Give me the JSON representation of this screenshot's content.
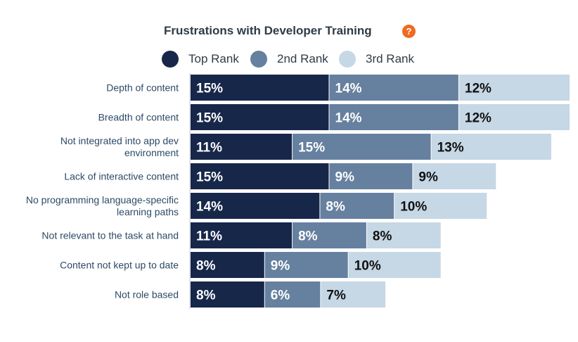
{
  "header": {
    "title": "Frustrations with Developer Training",
    "help_icon": "?"
  },
  "legend": {
    "items": [
      {
        "label": "Top Rank",
        "color": "#17274a"
      },
      {
        "label": "2nd Rank",
        "color": "#66809f"
      },
      {
        "label": "3rd Rank",
        "color": "#c6d7e5"
      }
    ]
  },
  "chart_data": {
    "type": "bar",
    "orientation": "horizontal",
    "stacked": true,
    "title": "Frustrations with Developer Training",
    "categories": [
      [
        "Depth of content"
      ],
      [
        "Breadth of content"
      ],
      [
        "Not integrated into app dev",
        "environment"
      ],
      [
        "Lack of interactive content"
      ],
      [
        "No programming language-specific",
        "learning paths"
      ],
      [
        "Not relevant to the task at hand"
      ],
      [
        "Content not kept up to date"
      ],
      [
        "Not role based"
      ]
    ],
    "series": [
      {
        "name": "Top Rank",
        "color": "#17274a",
        "text_color": "#ffffff",
        "values": [
          15,
          15,
          11,
          15,
          14,
          11,
          8,
          8
        ]
      },
      {
        "name": "2nd Rank",
        "color": "#66809f",
        "text_color": "#ffffff",
        "values": [
          14,
          14,
          15,
          9,
          8,
          8,
          9,
          6
        ]
      },
      {
        "name": "3rd Rank",
        "color": "#c6d7e5",
        "text_color": "#111111",
        "values": [
          12,
          12,
          13,
          9,
          10,
          8,
          10,
          7
        ]
      }
    ],
    "value_suffix": "%",
    "legend_position": "top",
    "grid": false
  }
}
